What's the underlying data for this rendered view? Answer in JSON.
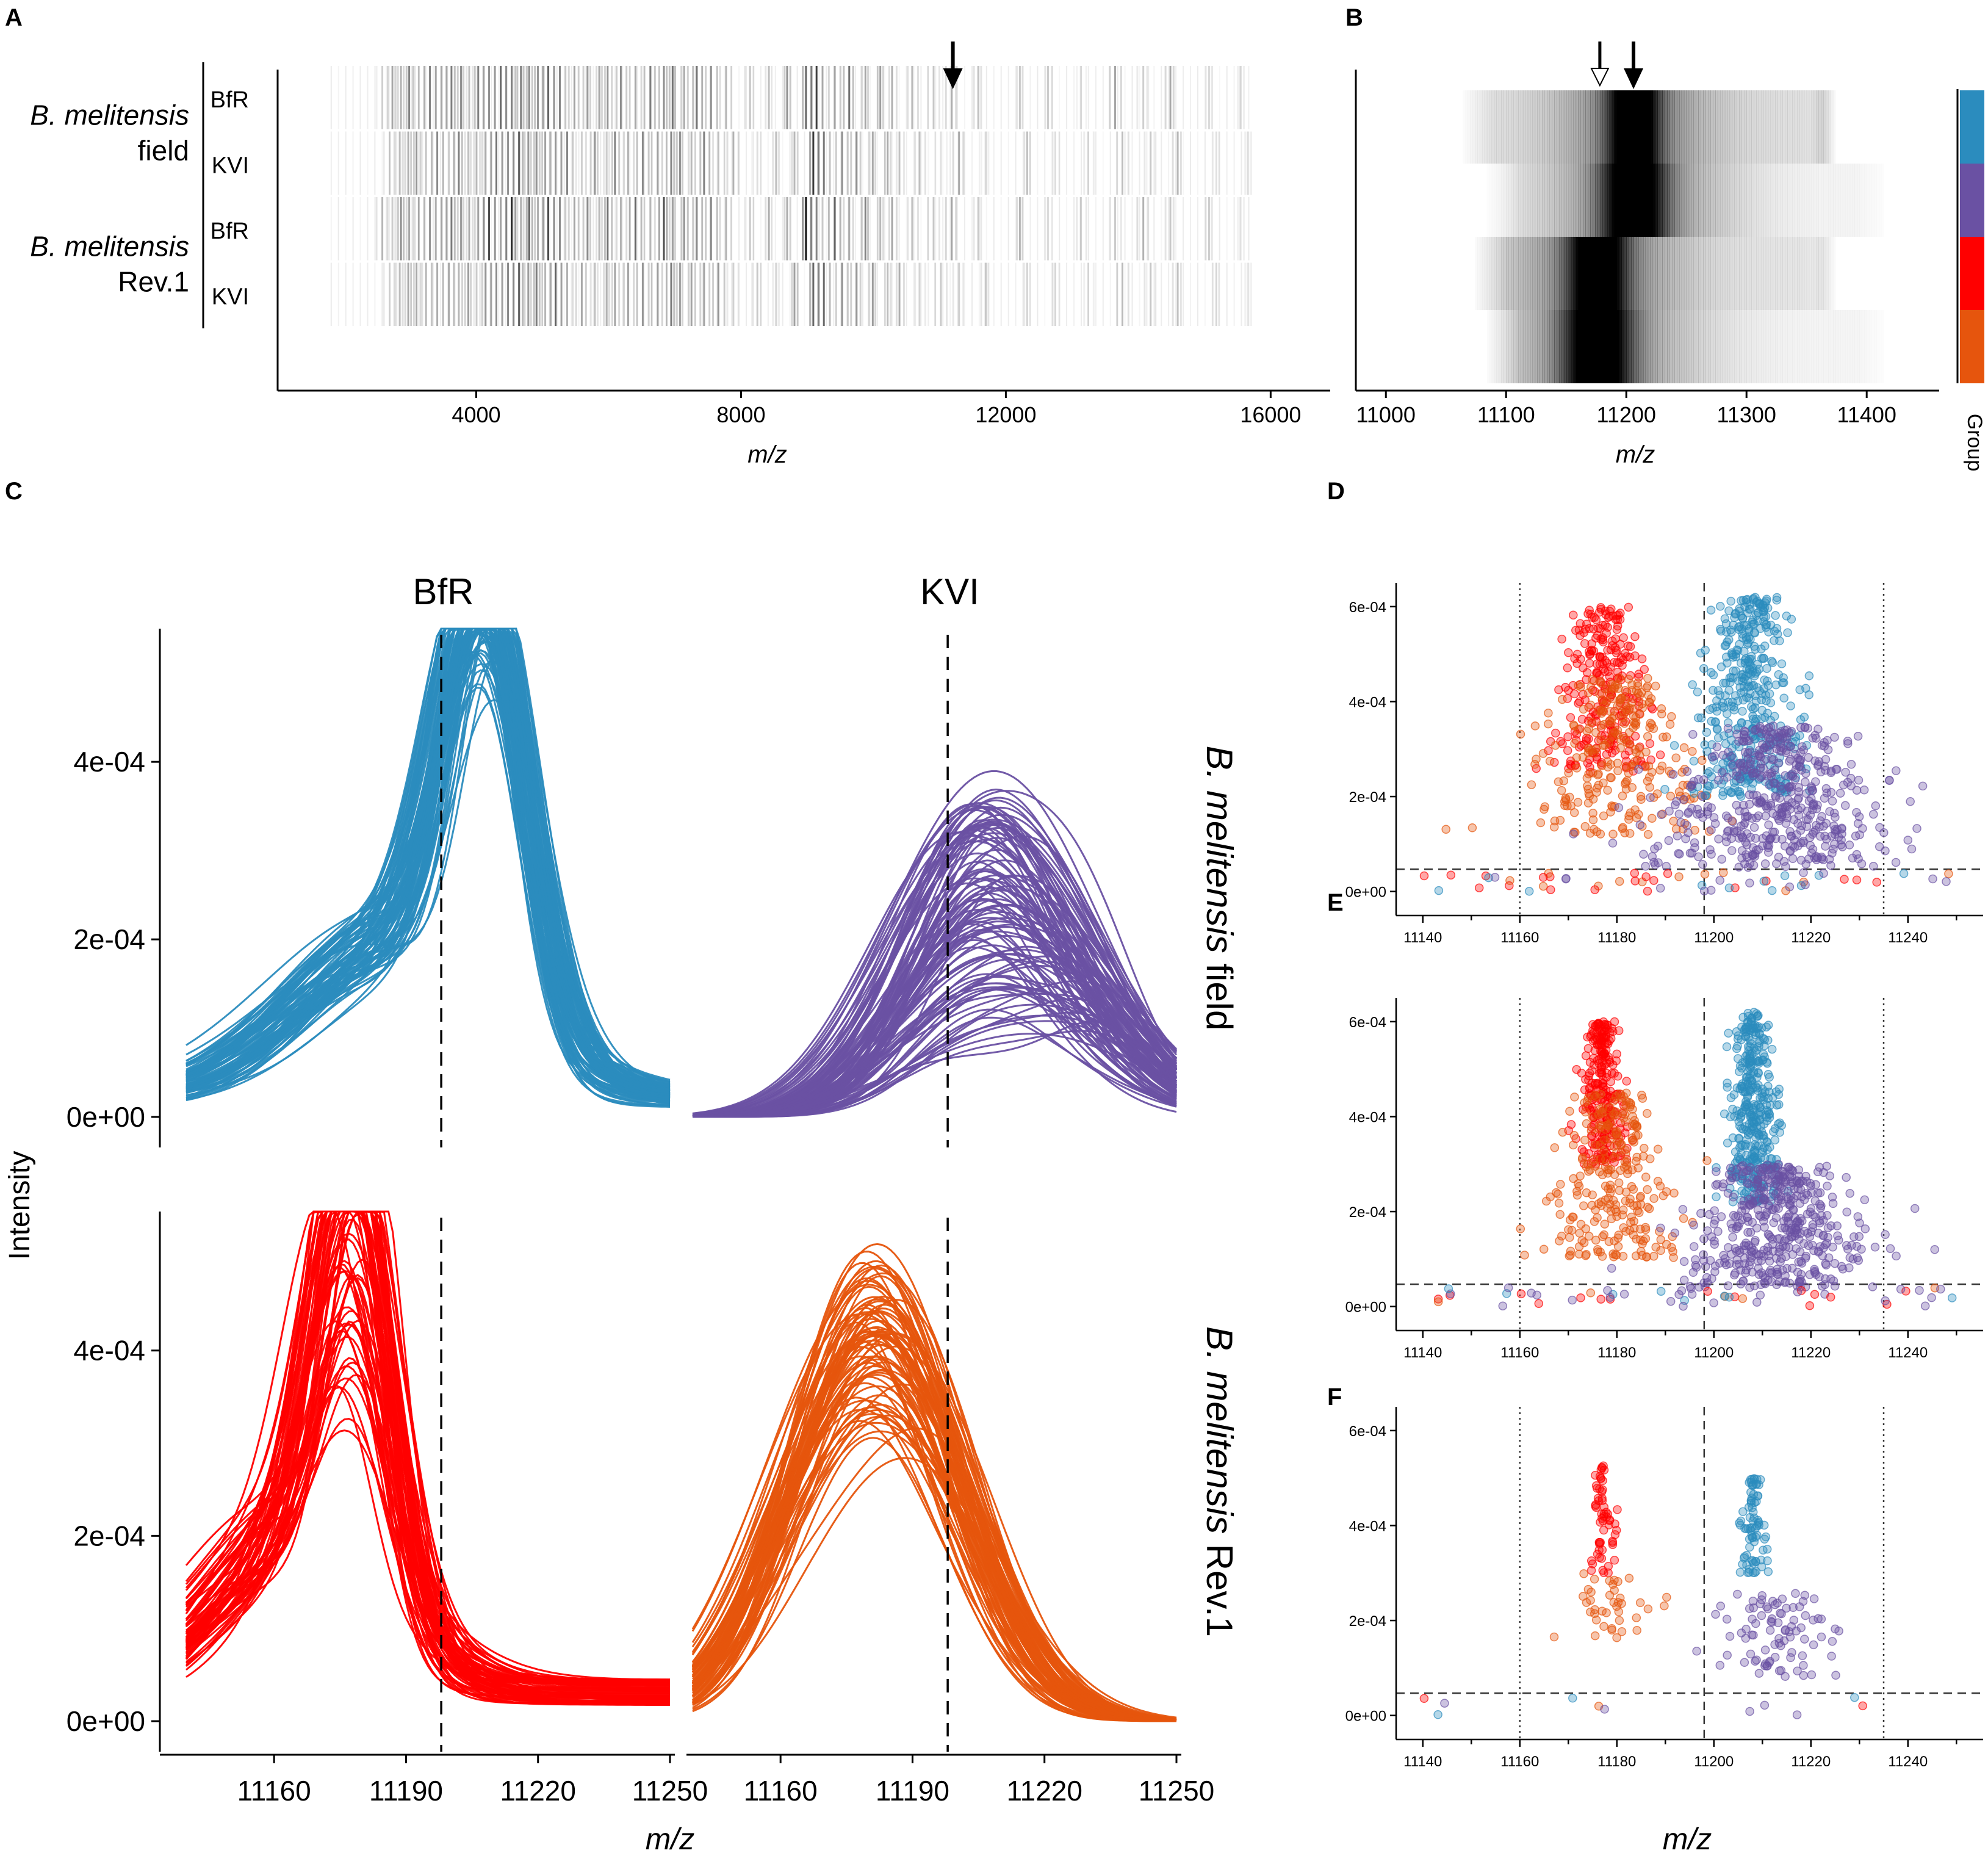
{
  "colors": {
    "field_BfR": "#2b8cbe",
    "field_KVI": "#6a51a3",
    "rev1_BfR": "#ff0000",
    "rev1_KVI": "#e6550d",
    "axis": "#000000"
  },
  "panel_labels": {
    "A": "A",
    "B": "B",
    "C": "C",
    "D": "D",
    "E": "E",
    "F": "F"
  },
  "chart_data": [
    {
      "panel": "A",
      "type": "heatmap",
      "xlabel": "m/z",
      "xlim": [
        1000,
        16900
      ],
      "xticks": [
        4000,
        8000,
        12000,
        16000
      ],
      "xtick_labels": [
        "4000",
        "8000",
        "12000",
        "16000"
      ],
      "rows": [
        "BfR",
        "KVI",
        "BfR",
        "KVI"
      ],
      "groups": [
        {
          "name_italic": "B. melitensis",
          "name_plain": "field"
        },
        {
          "name_italic": "B. melitensis",
          "name_plain": "Rev.1"
        }
      ],
      "arrow_at": 11200,
      "peaks": [
        [
          2600,
          0.25
        ],
        [
          2750,
          0.35
        ],
        [
          2900,
          0.45
        ],
        [
          3050,
          0.5
        ],
        [
          3200,
          0.3
        ],
        [
          3350,
          0.55
        ],
        [
          3500,
          0.4
        ],
        [
          3640,
          0.6
        ],
        [
          3800,
          0.45
        ],
        [
          3950,
          0.3
        ],
        [
          4100,
          0.5
        ],
        [
          4250,
          0.7
        ],
        [
          4400,
          0.6
        ],
        [
          4550,
          0.85
        ],
        [
          4700,
          0.5
        ],
        [
          4850,
          0.65
        ],
        [
          5000,
          0.45
        ],
        [
          5150,
          0.75
        ],
        [
          5300,
          0.55
        ],
        [
          5500,
          0.4
        ],
        [
          5700,
          0.5
        ],
        [
          5900,
          0.35
        ],
        [
          6050,
          0.55
        ],
        [
          6250,
          0.45
        ],
        [
          6450,
          0.6
        ],
        [
          6650,
          0.5
        ],
        [
          6850,
          0.7
        ],
        [
          7000,
          0.55
        ],
        [
          7200,
          0.45
        ],
        [
          7400,
          0.6
        ],
        [
          7600,
          0.5
        ],
        [
          7800,
          0.35
        ],
        [
          8150,
          0.25
        ],
        [
          8450,
          0.3
        ],
        [
          8750,
          0.45
        ],
        [
          9050,
          0.95
        ],
        [
          9200,
          0.75
        ],
        [
          9450,
          0.6
        ],
        [
          9650,
          0.55
        ],
        [
          9900,
          0.5
        ],
        [
          10150,
          0.4
        ],
        [
          10350,
          0.35
        ],
        [
          10650,
          0.3
        ],
        [
          10950,
          0.25
        ],
        [
          11200,
          0.4
        ],
        [
          11600,
          0.25
        ],
        [
          12250,
          0.3
        ],
        [
          12700,
          0.2
        ],
        [
          13200,
          0.2
        ],
        [
          13700,
          0.35
        ],
        [
          14100,
          0.3
        ],
        [
          14500,
          0.35
        ],
        [
          15100,
          0.2
        ],
        [
          15600,
          0.15
        ]
      ]
    },
    {
      "panel": "B",
      "type": "heatmap",
      "xlabel": "m/z",
      "xlim": [
        10975,
        11440
      ],
      "xticks": [
        11000,
        11100,
        11200,
        11300,
        11400
      ],
      "xtick_labels": [
        "11000",
        "11100",
        "11200",
        "11300",
        "11400"
      ],
      "rows": [
        {
          "peak": 11205,
          "width": 14,
          "start": 11060,
          "end": 11375,
          "base": 0.12,
          "secondary": 11365,
          "secondary_level": 0.3
        },
        {
          "peak": 11205,
          "width": 18,
          "start": 11080,
          "end": 11420,
          "base": 0.04,
          "secondary": 0,
          "secondary_level": 0
        },
        {
          "peak": 11175,
          "width": 16,
          "start": 11070,
          "end": 11375,
          "base": 0.1,
          "secondary": 11365,
          "secondary_level": 0.15
        },
        {
          "peak": 11175,
          "width": 19,
          "start": 11080,
          "end": 11420,
          "base": 0.04,
          "secondary": 0,
          "secondary_level": 0
        }
      ],
      "arrow_open_at": 11178,
      "arrow_filled_at": 11206,
      "legend_title": "Group"
    },
    {
      "panel": "C",
      "type": "line",
      "xlabel": "m/z",
      "ylabel": "Intensity",
      "xlim": [
        11140,
        11250
      ],
      "ylim": [
        0,
        0.00055
      ],
      "xticks": [
        11160,
        11190,
        11220,
        11250
      ],
      "xtick_labels": [
        "11160",
        "11190",
        "11220",
        "11250"
      ],
      "yticks": [
        0,
        0.0002,
        0.0004
      ],
      "ytick_labels": [
        "0e+00",
        "2e-04",
        "4e-04"
      ],
      "column_titles": [
        "BfR",
        "KVI"
      ],
      "row_labels": [
        {
          "italic": "B. melitensis",
          "plain": " field"
        },
        {
          "italic": "B. melitensis",
          "plain": " Rev.1"
        }
      ],
      "dashed_x": 11198,
      "facets": [
        {
          "row": 0,
          "col": 0,
          "color_key": "field_BfR",
          "n": 90,
          "peak1": 11208,
          "w1": 9,
          "amp_range": [
            0.00036,
            0.0005
          ],
          "peak2": 11188,
          "w2": 22,
          "amp2_range": [
            0.00014,
            0.00021
          ],
          "base": 2e-05
        },
        {
          "row": 0,
          "col": 1,
          "color_key": "field_KVI",
          "n": 110,
          "peak1": 11205,
          "w1": 17,
          "amp_range": [
            4e-05,
            0.00035
          ],
          "peak2": 11230,
          "w2": 14,
          "amp2_range": [
            2e-05,
            0.00012
          ],
          "base": 0.0
        },
        {
          "row": 1,
          "col": 0,
          "color_key": "rev1_BfR",
          "n": 70,
          "peak1": 11178,
          "w1": 8,
          "amp_range": [
            0.00016,
            0.00053
          ],
          "peak2": 11165,
          "w2": 18,
          "amp2_range": [
            0.00012,
            0.00021
          ],
          "base": 3e-05
        },
        {
          "row": 1,
          "col": 1,
          "color_key": "rev1_KVI",
          "n": 80,
          "peak1": 11178,
          "w1": 17,
          "amp_range": [
            0.00021,
            0.00041
          ],
          "peak2": 11195,
          "w2": 15,
          "amp2_range": [
            5e-05,
            0.00016
          ],
          "base": 0.0
        }
      ]
    },
    {
      "panel": "D",
      "type": "scatter",
      "xlabel": "m/z",
      "xlim": [
        11135,
        11255
      ],
      "ylim": [
        -3e-05,
        0.00065
      ],
      "xticks": [
        11140,
        11160,
        11180,
        11200,
        11220,
        11240
      ],
      "xtick_labels": [
        "11140",
        "11160",
        "11180",
        "11200",
        "11220",
        "11240"
      ],
      "yticks": [
        0,
        0.0002,
        0.0004,
        0.0006
      ],
      "ytick_labels": [
        "0e+00",
        "2e-04",
        "4e-04",
        "6e-04"
      ],
      "hline": 4.7e-05,
      "vlines_dotted": [
        11160,
        11235
      ],
      "vline_dashed": 11198,
      "clusters": [
        {
          "color_key": "rev1_BfR",
          "n": 260,
          "x": 11177,
          "sx": 2.5,
          "y": [
            0.00025,
            0.0006
          ]
        },
        {
          "color_key": "rev1_KVI",
          "n": 260,
          "x": 11180,
          "sx": 4.5,
          "y": [
            0.00012,
            0.00045
          ]
        },
        {
          "color_key": "field_BfR",
          "n": 420,
          "x": 11207,
          "sx": 3,
          "y": [
            0.0002,
            0.00062
          ]
        },
        {
          "color_key": "field_KVI",
          "n": 480,
          "x": 11213,
          "sx": 6,
          "y": [
            5e-05,
            0.00035
          ]
        }
      ]
    },
    {
      "panel": "E",
      "type": "scatter",
      "xlabel": "m/z",
      "xlim": [
        11135,
        11255
      ],
      "ylim": [
        -3e-05,
        0.00065
      ],
      "xticks": [
        11140,
        11160,
        11180,
        11200,
        11220,
        11240
      ],
      "xtick_labels": [
        "11140",
        "11160",
        "11180",
        "11200",
        "11220",
        "11240"
      ],
      "yticks": [
        0,
        0.0002,
        0.0004,
        0.0006
      ],
      "ytick_labels": [
        "0e+00",
        "2e-04",
        "4e-04",
        "6e-04"
      ],
      "hline": 4.7e-05,
      "vlines_dotted": [
        11160,
        11235
      ],
      "vline_dashed": 11198,
      "clusters": [
        {
          "color_key": "rev1_BfR",
          "n": 260,
          "x": 11177,
          "sx": 1.2,
          "y": [
            0.0003,
            0.0006
          ]
        },
        {
          "color_key": "rev1_KVI",
          "n": 260,
          "x": 11179,
          "sx": 3.5,
          "y": [
            0.0001,
            0.00045
          ]
        },
        {
          "color_key": "field_BfR",
          "n": 380,
          "x": 11208,
          "sx": 1.4,
          "y": [
            0.00022,
            0.00062
          ]
        },
        {
          "color_key": "field_KVI",
          "n": 460,
          "x": 11213,
          "sx": 5,
          "y": [
            4e-05,
            0.0003
          ]
        }
      ]
    },
    {
      "panel": "F",
      "type": "scatter",
      "xlabel": "m/z",
      "xlim": [
        11135,
        11255
      ],
      "ylim": [
        -3e-05,
        0.00065
      ],
      "xticks": [
        11140,
        11160,
        11180,
        11200,
        11220,
        11240
      ],
      "xtick_labels": [
        "11140",
        "11160",
        "11180",
        "11200",
        "11220",
        "11240"
      ],
      "yticks": [
        0,
        0.0002,
        0.0004,
        0.0006
      ],
      "ytick_labels": [
        "0e+00",
        "2e-04",
        "4e-04",
        "6e-04"
      ],
      "hline": 4.7e-05,
      "vlines_dotted": [
        11160,
        11235
      ],
      "vline_dashed": 11198,
      "clusters": [
        {
          "color_key": "rev1_BfR",
          "n": 60,
          "x": 11177,
          "sx": 0.8,
          "y": [
            0.0003,
            0.00053
          ]
        },
        {
          "color_key": "rev1_KVI",
          "n": 40,
          "x": 11179,
          "sx": 2.5,
          "y": [
            0.00016,
            0.0003
          ]
        },
        {
          "color_key": "field_BfR",
          "n": 80,
          "x": 11208,
          "sx": 0.7,
          "y": [
            0.0003,
            0.0005
          ]
        },
        {
          "color_key": "field_KVI",
          "n": 90,
          "x": 11213,
          "sx": 4,
          "y": [
            8e-05,
            0.00026
          ]
        }
      ]
    }
  ]
}
